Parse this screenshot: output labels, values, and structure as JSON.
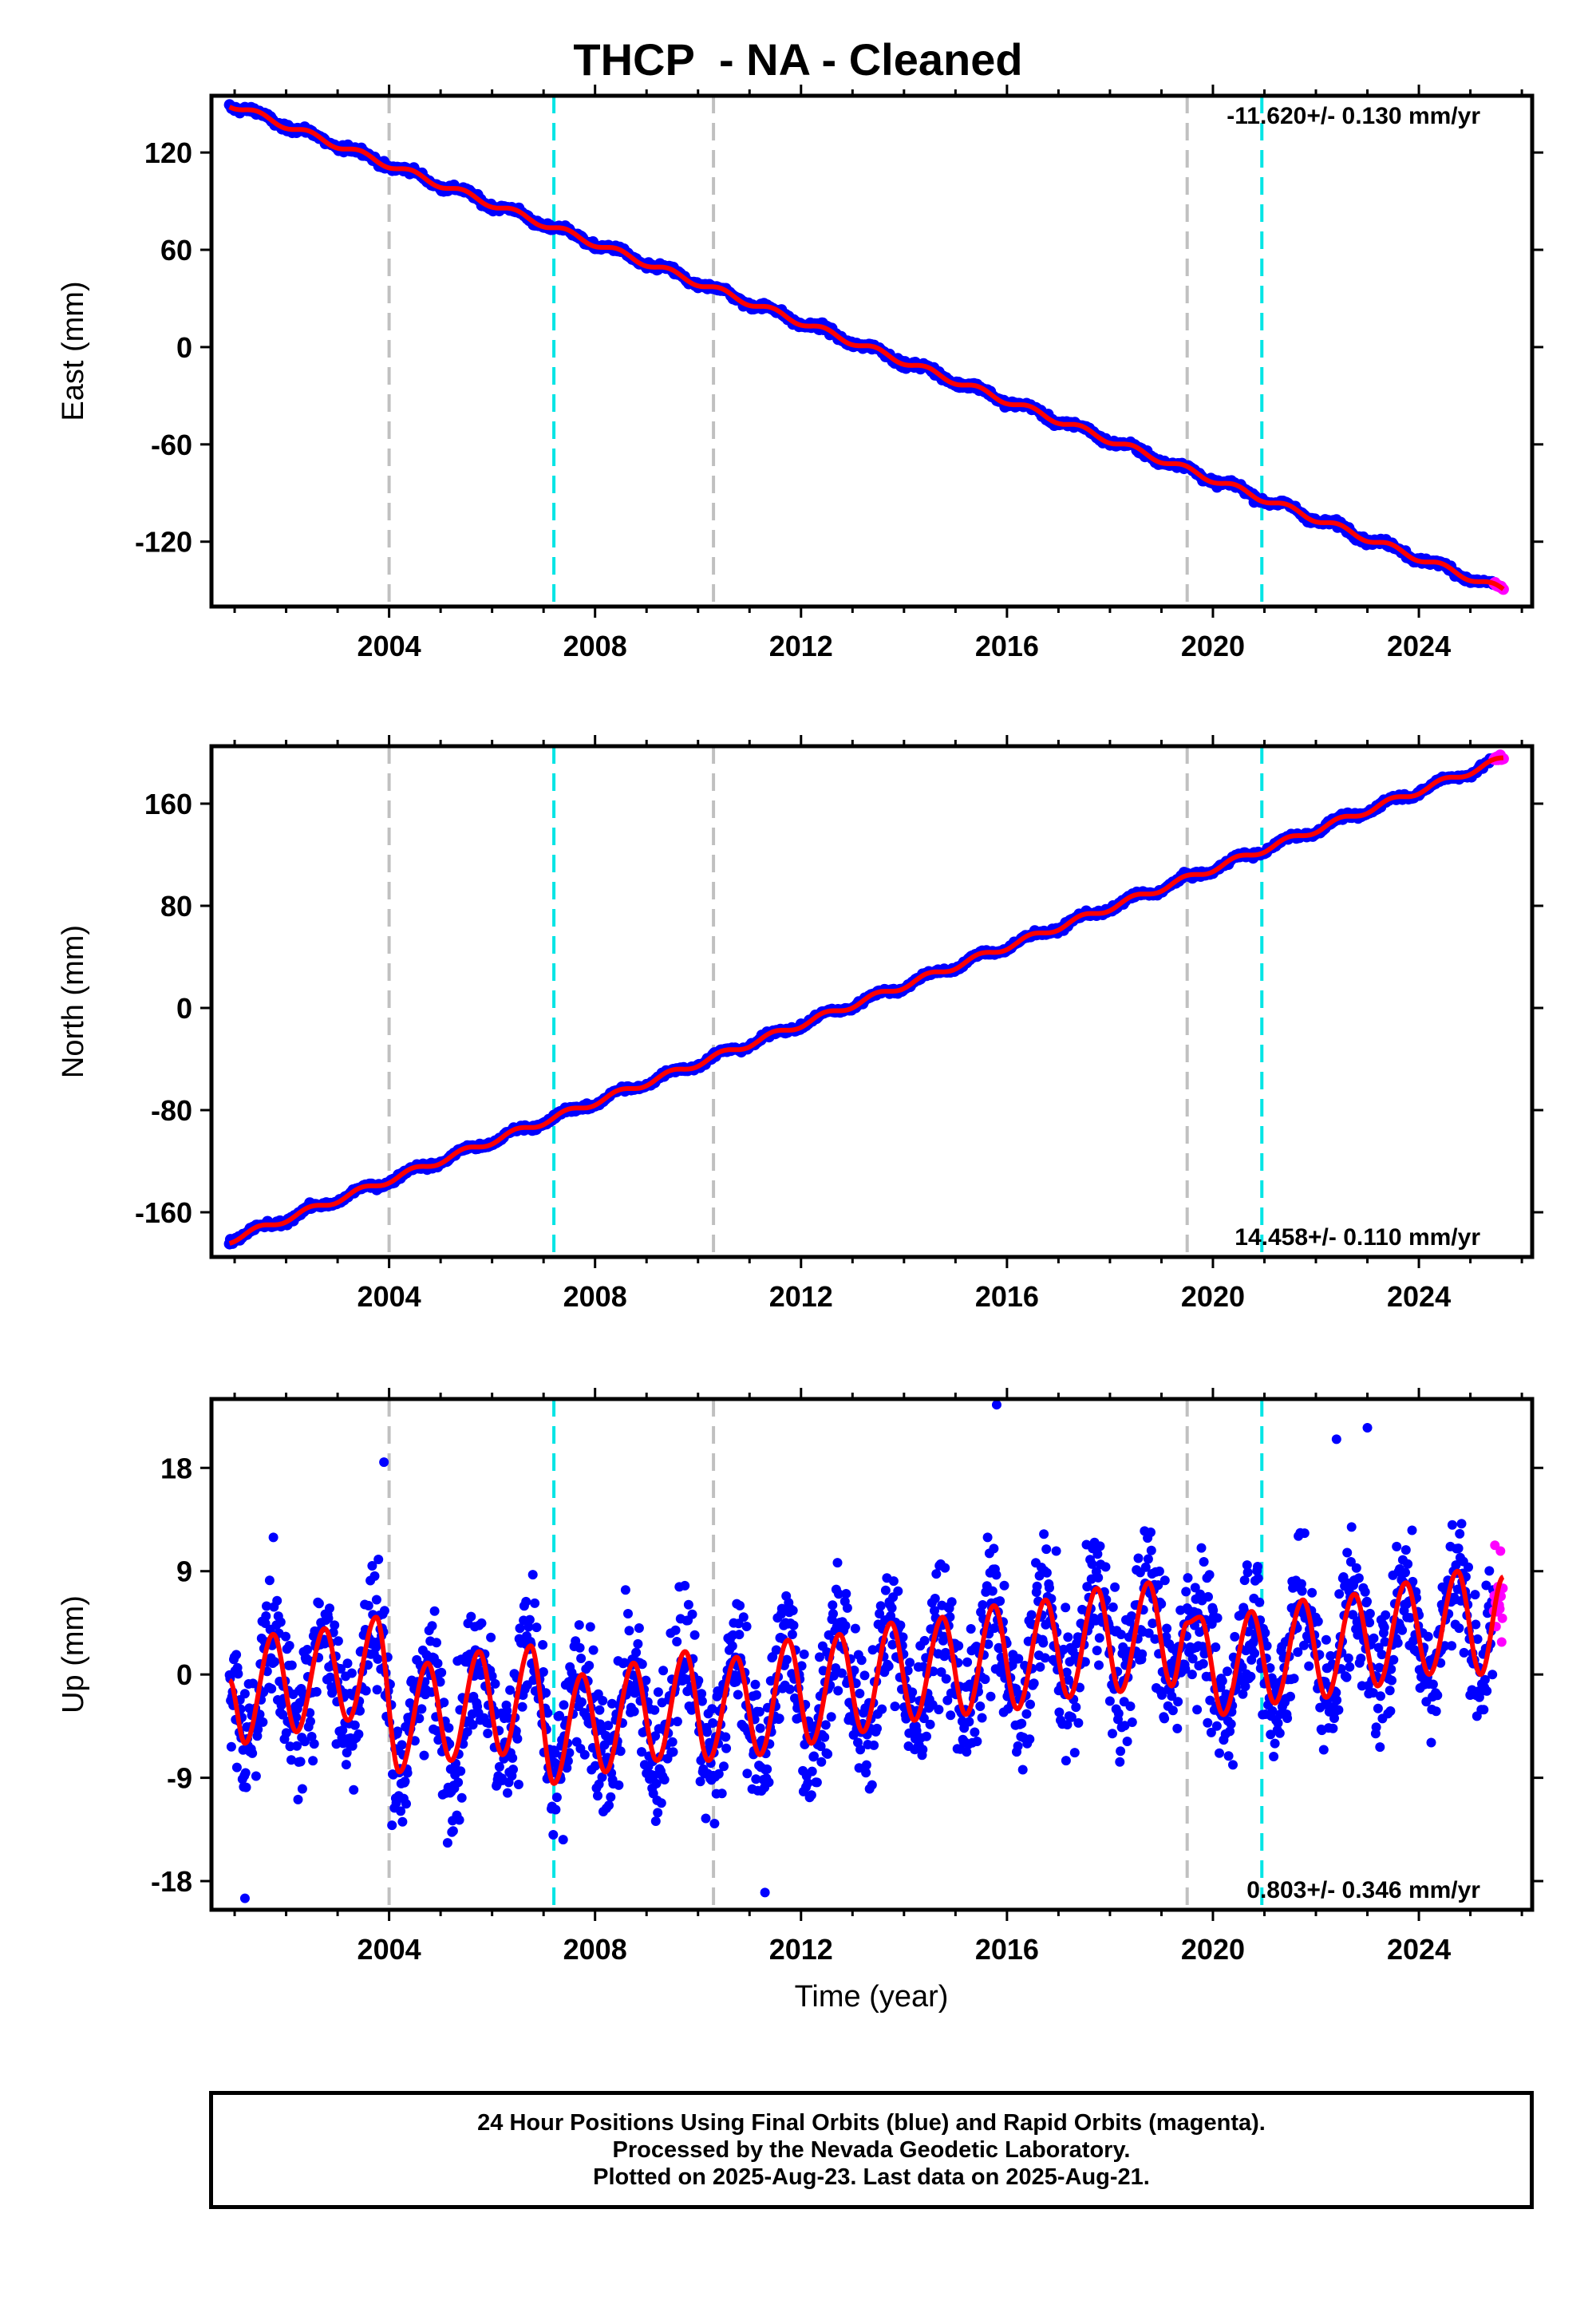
{
  "title": "THCP  - NA - Cleaned",
  "xlabel": "Time (year)",
  "footer": [
    "24 Hour Positions Using Final Orbits (blue) and Rapid Orbits (magenta).",
    "Processed by the Nevada Geodetic Laboratory.",
    "Plotted on 2025-Aug-23. Last data on 2025-Aug-21."
  ],
  "colors": {
    "final_orbits": "#0000ff",
    "rapid_orbits": "#ff00ff",
    "model_fit": "#ff0000",
    "gray_event_line": "#c0c0c0",
    "cyan_event_line": "#00e5e5"
  },
  "chart_data": [
    {
      "type": "scatter",
      "ylabel": "East (mm)",
      "rate_label": "-11.620+/- 0.130 mm/yr",
      "xlim": [
        2000.55,
        2026.2
      ],
      "ylim": [
        -160,
        155
      ],
      "xticks": [
        2004,
        2008,
        2012,
        2016,
        2020,
        2024
      ],
      "yticks": [
        120,
        60,
        0,
        -60,
        -120
      ],
      "start": {
        "year": 2000.9,
        "value": 150
      },
      "end": {
        "year": 2025.64,
        "value": -150
      },
      "rate_mm_per_yr": -11.62,
      "seasonal_amplitude_mm": 2,
      "rapid_orbits_from": 2025.45,
      "series": [
        {
          "name": "Final Orbits (blue)",
          "color": "#0000ff"
        },
        {
          "name": "Rapid Orbits (magenta)",
          "color": "#ff00ff"
        }
      ],
      "event_lines": [
        {
          "year": 2004.0,
          "color": "gray"
        },
        {
          "year": 2007.2,
          "color": "cyan"
        },
        {
          "year": 2010.3,
          "color": "gray"
        },
        {
          "year": 2019.5,
          "color": "gray"
        },
        {
          "year": 2020.95,
          "color": "cyan"
        }
      ]
    },
    {
      "type": "scatter",
      "ylabel": "North (mm)",
      "rate_label": "14.458+/- 0.110 mm/yr",
      "xlim": [
        2000.55,
        2026.2
      ],
      "ylim": [
        -195,
        205
      ],
      "xticks": [
        2004,
        2008,
        2012,
        2016,
        2020,
        2024
      ],
      "yticks": [
        160,
        80,
        0,
        -80,
        -160
      ],
      "start": {
        "year": 2000.9,
        "value": -182
      },
      "end": {
        "year": 2025.64,
        "value": 195
      },
      "rate_mm_per_yr": 14.458,
      "seasonal_amplitude_mm": 2.5,
      "rapid_orbits_from": 2025.45,
      "series": [
        {
          "name": "Final Orbits (blue)",
          "color": "#0000ff"
        },
        {
          "name": "Rapid Orbits (magenta)",
          "color": "#ff00ff"
        }
      ],
      "event_lines": [
        {
          "year": 2004.0,
          "color": "gray"
        },
        {
          "year": 2007.2,
          "color": "cyan"
        },
        {
          "year": 2010.3,
          "color": "gray"
        },
        {
          "year": 2019.5,
          "color": "gray"
        },
        {
          "year": 2020.95,
          "color": "cyan"
        }
      ]
    },
    {
      "type": "scatter",
      "ylabel": "Up (mm)",
      "rate_label": "0.803+/- 0.346 mm/yr",
      "xlim": [
        2000.55,
        2026.2
      ],
      "ylim": [
        -20.5,
        24
      ],
      "xticks": [
        2004,
        2008,
        2012,
        2016,
        2020,
        2024
      ],
      "yticks": [
        18,
        9,
        0,
        -9,
        -18
      ],
      "rate_mm_per_yr": 0.803,
      "rapid_orbits_from": 2025.45,
      "seasonal_fit_extrema": [
        {
          "year": 2000.9,
          "value": -0.5
        },
        {
          "year": 2001.2,
          "value": -6
        },
        {
          "year": 2001.75,
          "value": 3.5
        },
        {
          "year": 2002.2,
          "value": -5
        },
        {
          "year": 2002.75,
          "value": 4
        },
        {
          "year": 2003.2,
          "value": -4
        },
        {
          "year": 2003.75,
          "value": 5
        },
        {
          "year": 2004.2,
          "value": -8.5
        },
        {
          "year": 2004.75,
          "value": 1
        },
        {
          "year": 2005.2,
          "value": -7.5
        },
        {
          "year": 2005.75,
          "value": 2
        },
        {
          "year": 2006.2,
          "value": -7
        },
        {
          "year": 2006.75,
          "value": 2.5
        },
        {
          "year": 2007.2,
          "value": -9.5
        },
        {
          "year": 2007.75,
          "value": 0
        },
        {
          "year": 2008.2,
          "value": -8.5
        },
        {
          "year": 2008.75,
          "value": 1
        },
        {
          "year": 2009.2,
          "value": -7.5
        },
        {
          "year": 2009.75,
          "value": 2
        },
        {
          "year": 2010.2,
          "value": -7.5
        },
        {
          "year": 2010.75,
          "value": 1.5
        },
        {
          "year": 2011.2,
          "value": -7
        },
        {
          "year": 2011.75,
          "value": 3
        },
        {
          "year": 2012.2,
          "value": -6
        },
        {
          "year": 2012.75,
          "value": 3.5
        },
        {
          "year": 2013.2,
          "value": -5
        },
        {
          "year": 2013.75,
          "value": 4.5
        },
        {
          "year": 2014.2,
          "value": -4
        },
        {
          "year": 2014.75,
          "value": 5
        },
        {
          "year": 2015.2,
          "value": -3.5
        },
        {
          "year": 2015.75,
          "value": 6
        },
        {
          "year": 2016.2,
          "value": -3
        },
        {
          "year": 2016.75,
          "value": 6.5
        },
        {
          "year": 2017.2,
          "value": -2
        },
        {
          "year": 2017.75,
          "value": 7.5
        },
        {
          "year": 2018.2,
          "value": -1.5
        },
        {
          "year": 2018.75,
          "value": 8
        },
        {
          "year": 2019.2,
          "value": -1
        },
        {
          "year": 2019.5,
          "value": 4.5
        },
        {
          "year": 2019.75,
          "value": 5
        },
        {
          "year": 2020.2,
          "value": -3.5
        },
        {
          "year": 2020.75,
          "value": 5.5
        },
        {
          "year": 2021.2,
          "value": -2.5
        },
        {
          "year": 2021.75,
          "value": 6.5
        },
        {
          "year": 2022.2,
          "value": -2
        },
        {
          "year": 2022.75,
          "value": 7
        },
        {
          "year": 2023.2,
          "value": -1
        },
        {
          "year": 2023.75,
          "value": 8
        },
        {
          "year": 2024.2,
          "value": 0
        },
        {
          "year": 2024.75,
          "value": 9
        },
        {
          "year": 2025.2,
          "value": 0
        },
        {
          "year": 2025.64,
          "value": 8.5
        }
      ],
      "scatter_spread_mm": 4.2,
      "outliers": [
        {
          "year": 2015.8,
          "value": 23.5
        },
        {
          "year": 2023.0,
          "value": 21.5
        },
        {
          "year": 2001.2,
          "value": -19.5
        },
        {
          "year": 2011.3,
          "value": -19
        },
        {
          "year": 2003.9,
          "value": 18.5
        },
        {
          "year": 2022.4,
          "value": 20.5
        }
      ],
      "series": [
        {
          "name": "Final Orbits (blue)",
          "color": "#0000ff"
        },
        {
          "name": "Rapid Orbits (magenta)",
          "color": "#ff00ff"
        }
      ],
      "event_lines": [
        {
          "year": 2004.0,
          "color": "gray"
        },
        {
          "year": 2007.2,
          "color": "cyan"
        },
        {
          "year": 2010.3,
          "color": "gray"
        },
        {
          "year": 2019.5,
          "color": "gray"
        },
        {
          "year": 2020.95,
          "color": "cyan"
        }
      ]
    }
  ]
}
